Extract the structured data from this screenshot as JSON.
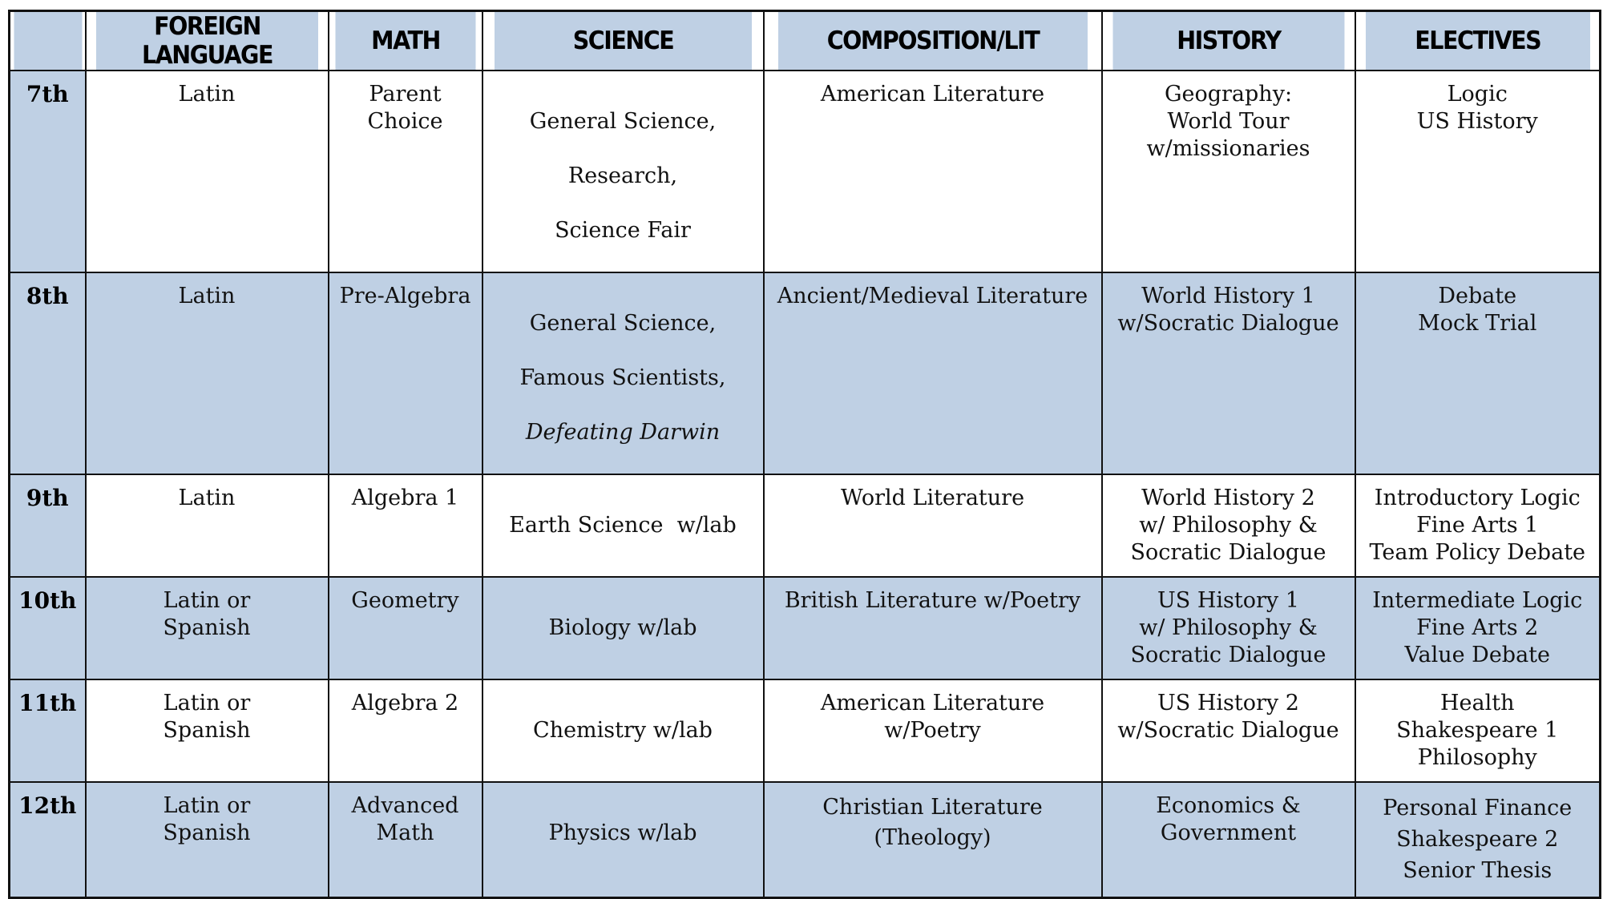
{
  "headers": [
    "",
    "FOREIGN LANGUAGE",
    "MATH",
    "SCIENCE",
    "COMPOSITION/LIT",
    "HISTORY",
    "ELECTIVES"
  ],
  "rows": [
    {
      "grade": "7th",
      "foreign_language": "Latin",
      "math": "Parent\nChoice",
      "science": [
        "General Science,",
        "Research,",
        "Science Fair"
      ],
      "composition_lit": "American Literature",
      "history": "Geography:\nWorld Tour\nw/missionaries",
      "electives": "Logic\nUS History"
    },
    {
      "grade": "8th",
      "foreign_language": "Latin",
      "math": "Pre-Algebra",
      "science": [
        "General Science,",
        "Famous Scientists,",
        "Defeating Darwin"
      ],
      "composition_lit": "Ancient/Medieval Literature",
      "history": "World History 1\nw/Socratic Dialogue",
      "electives": "Debate\nMock Trial"
    },
    {
      "grade": "9th",
      "foreign_language": "Latin",
      "math": "Algebra 1",
      "science": [
        "Earth Science  w/lab"
      ],
      "composition_lit": "World Literature",
      "history": "World History 2\nw/ Philosophy &\nSocratic Dialogue",
      "electives": "Introductory  Logic\nFine Arts 1\nTeam Policy Debate"
    },
    {
      "grade": "10th",
      "foreign_language": "Latin or\nSpanish",
      "math": "Geometry",
      "science": [
        "Biology w/lab"
      ],
      "composition_lit": "British Literature w/Poetry",
      "history": "US History 1\nw/ Philosophy &\nSocratic Dialogue",
      "electives": "Intermediate Logic\nFine Arts 2\nValue Debate"
    },
    {
      "grade": "11th",
      "foreign_language": "Latin or\nSpanish",
      "math": "Algebra 2",
      "science": [
        "Chemistry w/lab"
      ],
      "composition_lit": "American Literature\nw/Poetry",
      "history": "US History 2\nw/Socratic Dialogue",
      "electives": "Health\nShakespeare 1\nPhilosophy"
    },
    {
      "grade": "12th",
      "foreign_language": "Latin or\nSpanish",
      "math": "Advanced\nMath",
      "science": [
        "Physics w/lab"
      ],
      "composition_lit": "Christian Literature\n(Theology)",
      "history": "Economics &\nGovernment",
      "electives": "Personal Finance\nShakespeare 2\nSenior Thesis"
    }
  ],
  "colors": {
    "header_bg": "#bfd0e4",
    "row_alt_bg": "#bfd0e4",
    "row_bg": "#ffffff",
    "border": "#111111"
  }
}
